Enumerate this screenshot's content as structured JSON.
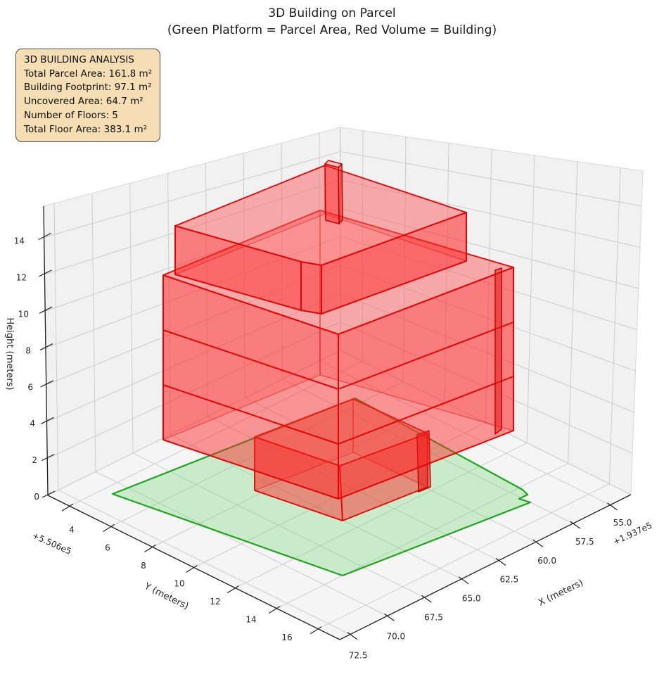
{
  "title": {
    "line1": "3D Building on Parcel",
    "line2": "(Green Platform = Parcel Area, Red Volume = Building)"
  },
  "annotation": {
    "heading": "3D BUILDING ANALYSIS",
    "lines": [
      "Total Parcel Area: 161.8 m²",
      "Building Footprint: 97.1 m²",
      "Uncovered Area: 64.7 m²",
      "Number of Floors: 5",
      "Total Floor Area: 383.1 m²"
    ]
  },
  "axes": {
    "x": {
      "label": "X (meters)",
      "offset": "+1.937e5",
      "ticks": [
        "55.0",
        "57.5",
        "60.0",
        "62.5",
        "65.0",
        "67.5",
        "70.0",
        "72.5"
      ]
    },
    "y": {
      "label": "Y (meters)",
      "offset": "+5.506e5",
      "ticks": [
        "4",
        "6",
        "8",
        "10",
        "12",
        "14",
        "16"
      ]
    },
    "z": {
      "label": "Height (meters)",
      "ticks": [
        "0",
        "2",
        "4",
        "6",
        "8",
        "10",
        "12",
        "14"
      ]
    }
  },
  "chart_data": {
    "type": "3d-building",
    "title": "3D Building on Parcel",
    "subtitle": "(Green Platform = Parcel Area, Red Volume = Building)",
    "legend": {
      "green": "Parcel Area",
      "red": "Building"
    },
    "stats": {
      "total_parcel_area_m2": 161.8,
      "building_footprint_m2": 97.1,
      "uncovered_area_m2": 64.7,
      "number_of_floors": 5,
      "total_floor_area_m2": 383.1
    },
    "floor_height_m": 3,
    "axis_ranges": {
      "x": [
        53.6,
        73.2
      ],
      "y": [
        2.95,
        17.05
      ],
      "z": [
        0,
        15.7
      ]
    },
    "x_ticks": [
      55.0,
      57.5,
      60.0,
      62.5,
      65.0,
      67.5,
      70.0,
      72.5
    ],
    "y_ticks": [
      4,
      6,
      8,
      10,
      12,
      14,
      16
    ],
    "z_ticks": [
      0,
      2,
      4,
      6,
      8,
      10,
      12,
      14
    ],
    "colors": {
      "parcel_fill": "#d9f0d6",
      "parcel_edge": "#1ea51e",
      "building_face": "rgba(255,32,32,0.45)",
      "building_edge": "#e30505",
      "pane": "#f1f1f1",
      "grid": "#cccccc",
      "annotation_bg": "#f5deb3"
    }
  }
}
